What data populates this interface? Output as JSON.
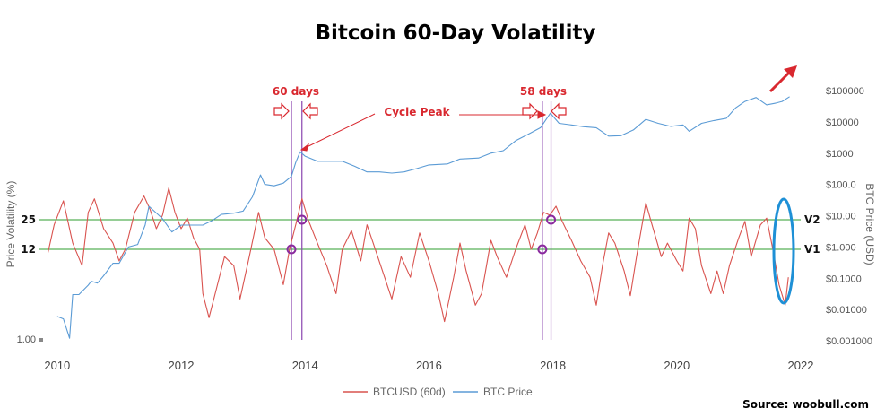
{
  "chart_data": {
    "type": "line",
    "title": "Bitcoin 60-Day Volatility",
    "x_ticks": [
      "2010",
      "2012",
      "2014",
      "2016",
      "2018",
      "2020",
      "2022"
    ],
    "xlim": [
      2009.8,
      2022.0
    ],
    "left_axis": {
      "label": "Price Volatility (%)",
      "labeled_ticks": [
        {
          "label": "25",
          "value": 25
        },
        {
          "label": "12",
          "value": 12
        },
        {
          "label": "1.00",
          "value": 1
        }
      ],
      "scale": "log"
    },
    "right_axis": {
      "label": "BTC Price (USD)",
      "scale": "log",
      "ticks": [
        "$100000",
        "$10000",
        "$1000",
        "$100.0",
        "$10.00",
        "$1.000",
        "$0.1000",
        "$0.01000",
        "$0.001000"
      ]
    },
    "series": [
      {
        "name": "BTCUSD (60d)",
        "color": "#d9534f",
        "axis": "left",
        "points": [
          [
            2009.85,
            11
          ],
          [
            2009.95,
            22
          ],
          [
            2010.1,
            40
          ],
          [
            2010.25,
            14
          ],
          [
            2010.4,
            8
          ],
          [
            2010.5,
            30
          ],
          [
            2010.6,
            42
          ],
          [
            2010.75,
            20
          ],
          [
            2010.9,
            14
          ],
          [
            2011.0,
            9
          ],
          [
            2011.1,
            12
          ],
          [
            2011.25,
            30
          ],
          [
            2011.4,
            45
          ],
          [
            2011.5,
            32
          ],
          [
            2011.6,
            20
          ],
          [
            2011.7,
            28
          ],
          [
            2011.8,
            55
          ],
          [
            2011.9,
            30
          ],
          [
            2012.0,
            20
          ],
          [
            2012.1,
            26
          ],
          [
            2012.2,
            16
          ],
          [
            2012.3,
            12
          ],
          [
            2012.35,
            4
          ],
          [
            2012.45,
            2.2
          ],
          [
            2012.55,
            4
          ],
          [
            2012.7,
            10
          ],
          [
            2012.85,
            8
          ],
          [
            2012.95,
            3.5
          ],
          [
            2013.1,
            10
          ],
          [
            2013.25,
            30
          ],
          [
            2013.35,
            16
          ],
          [
            2013.5,
            12
          ],
          [
            2013.65,
            5
          ],
          [
            2013.75,
            12
          ],
          [
            2013.85,
            22
          ],
          [
            2013.95,
            42
          ],
          [
            2014.05,
            25
          ],
          [
            2014.2,
            14
          ],
          [
            2014.35,
            8
          ],
          [
            2014.5,
            4
          ],
          [
            2014.6,
            12
          ],
          [
            2014.75,
            19
          ],
          [
            2014.9,
            9
          ],
          [
            2015.0,
            22
          ],
          [
            2015.1,
            14
          ],
          [
            2015.25,
            7
          ],
          [
            2015.4,
            3.5
          ],
          [
            2015.55,
            10
          ],
          [
            2015.7,
            6
          ],
          [
            2015.85,
            18
          ],
          [
            2016.0,
            9
          ],
          [
            2016.15,
            4
          ],
          [
            2016.25,
            2
          ],
          [
            2016.4,
            6
          ],
          [
            2016.5,
            14
          ],
          [
            2016.6,
            7
          ],
          [
            2016.75,
            3
          ],
          [
            2016.85,
            4
          ],
          [
            2017.0,
            15
          ],
          [
            2017.1,
            10
          ],
          [
            2017.25,
            6
          ],
          [
            2017.4,
            12
          ],
          [
            2017.55,
            22
          ],
          [
            2017.65,
            12
          ],
          [
            2017.75,
            18
          ],
          [
            2017.85,
            30
          ],
          [
            2017.95,
            28
          ],
          [
            2018.05,
            35
          ],
          [
            2018.15,
            24
          ],
          [
            2018.3,
            15
          ],
          [
            2018.45,
            9
          ],
          [
            2018.6,
            6
          ],
          [
            2018.7,
            3
          ],
          [
            2018.8,
            8
          ],
          [
            2018.9,
            18
          ],
          [
            2019.0,
            14
          ],
          [
            2019.15,
            7
          ],
          [
            2019.25,
            3.8
          ],
          [
            2019.35,
            10
          ],
          [
            2019.5,
            38
          ],
          [
            2019.6,
            22
          ],
          [
            2019.75,
            10
          ],
          [
            2019.85,
            14
          ],
          [
            2020.0,
            9
          ],
          [
            2020.1,
            7
          ],
          [
            2020.2,
            26
          ],
          [
            2020.3,
            20
          ],
          [
            2020.4,
            8
          ],
          [
            2020.55,
            4
          ],
          [
            2020.65,
            7
          ],
          [
            2020.75,
            4
          ],
          [
            2020.85,
            8
          ],
          [
            2021.0,
            16
          ],
          [
            2021.1,
            24
          ],
          [
            2021.2,
            10
          ],
          [
            2021.35,
            22
          ],
          [
            2021.45,
            26
          ],
          [
            2021.55,
            12
          ],
          [
            2021.65,
            5
          ],
          [
            2021.75,
            3
          ],
          [
            2021.8,
            6
          ]
        ]
      },
      {
        "name": "BTC Price",
        "color": "#5b9bd5",
        "axis": "right",
        "points": [
          [
            2010.0,
            0.006
          ],
          [
            2010.1,
            0.005
          ],
          [
            2010.2,
            0.0012
          ],
          [
            2010.25,
            0.03
          ],
          [
            2010.35,
            0.03
          ],
          [
            2010.5,
            0.06
          ],
          [
            2010.55,
            0.08
          ],
          [
            2010.65,
            0.07
          ],
          [
            2010.75,
            0.12
          ],
          [
            2010.9,
            0.3
          ],
          [
            2011.0,
            0.3
          ],
          [
            2011.15,
            1.0
          ],
          [
            2011.3,
            1.2
          ],
          [
            2011.42,
            5
          ],
          [
            2011.48,
            20
          ],
          [
            2011.55,
            15
          ],
          [
            2011.7,
            8
          ],
          [
            2011.85,
            3
          ],
          [
            2012.0,
            5
          ],
          [
            2012.2,
            5
          ],
          [
            2012.35,
            5
          ],
          [
            2012.5,
            7
          ],
          [
            2012.65,
            11
          ],
          [
            2012.85,
            12
          ],
          [
            2013.0,
            14
          ],
          [
            2013.15,
            40
          ],
          [
            2013.28,
            200
          ],
          [
            2013.35,
            100
          ],
          [
            2013.5,
            90
          ],
          [
            2013.65,
            110
          ],
          [
            2013.78,
            180
          ],
          [
            2013.85,
            500
          ],
          [
            2013.92,
            1100
          ],
          [
            2014.0,
            800
          ],
          [
            2014.2,
            550
          ],
          [
            2014.4,
            550
          ],
          [
            2014.6,
            550
          ],
          [
            2014.8,
            380
          ],
          [
            2015.0,
            250
          ],
          [
            2015.2,
            250
          ],
          [
            2015.4,
            230
          ],
          [
            2015.6,
            250
          ],
          [
            2015.8,
            320
          ],
          [
            2016.0,
            420
          ],
          [
            2016.3,
            450
          ],
          [
            2016.5,
            650
          ],
          [
            2016.8,
            700
          ],
          [
            2017.0,
            1000
          ],
          [
            2017.2,
            1200
          ],
          [
            2017.4,
            2500
          ],
          [
            2017.6,
            4000
          ],
          [
            2017.8,
            6500
          ],
          [
            2017.96,
            19000
          ],
          [
            2018.1,
            9000
          ],
          [
            2018.3,
            8000
          ],
          [
            2018.5,
            7000
          ],
          [
            2018.7,
            6500
          ],
          [
            2018.9,
            3500
          ],
          [
            2019.1,
            3600
          ],
          [
            2019.3,
            5500
          ],
          [
            2019.5,
            12000
          ],
          [
            2019.7,
            9000
          ],
          [
            2019.9,
            7200
          ],
          [
            2020.1,
            8000
          ],
          [
            2020.2,
            5000
          ],
          [
            2020.4,
            9000
          ],
          [
            2020.6,
            11000
          ],
          [
            2020.8,
            13000
          ],
          [
            2020.95,
            28000
          ],
          [
            2021.1,
            45000
          ],
          [
            2021.28,
            60000
          ],
          [
            2021.45,
            35000
          ],
          [
            2021.6,
            40000
          ],
          [
            2021.7,
            45000
          ],
          [
            2021.82,
            64000
          ]
        ]
      }
    ],
    "reference_lines": [
      {
        "label": "V2",
        "value": 25,
        "color": "#2e9e2e"
      },
      {
        "label": "V1",
        "value": 12,
        "color": "#2e9e2e"
      }
    ],
    "vertical_markers": [
      2013.78,
      2013.95,
      2017.83,
      2017.97
    ],
    "circle_markers": [
      {
        "x": 2013.78,
        "y": 12
      },
      {
        "x": 2013.95,
        "y": 25
      },
      {
        "x": 2017.83,
        "y": 12
      },
      {
        "x": 2017.97,
        "y": 25
      }
    ],
    "annotations": {
      "left_window": "60 days",
      "right_window": "58 days",
      "cycle_peak": "Cycle Peak"
    },
    "legend": {
      "position": "bottom-center"
    },
    "source": "Source: woobull.com",
    "grid": false
  }
}
